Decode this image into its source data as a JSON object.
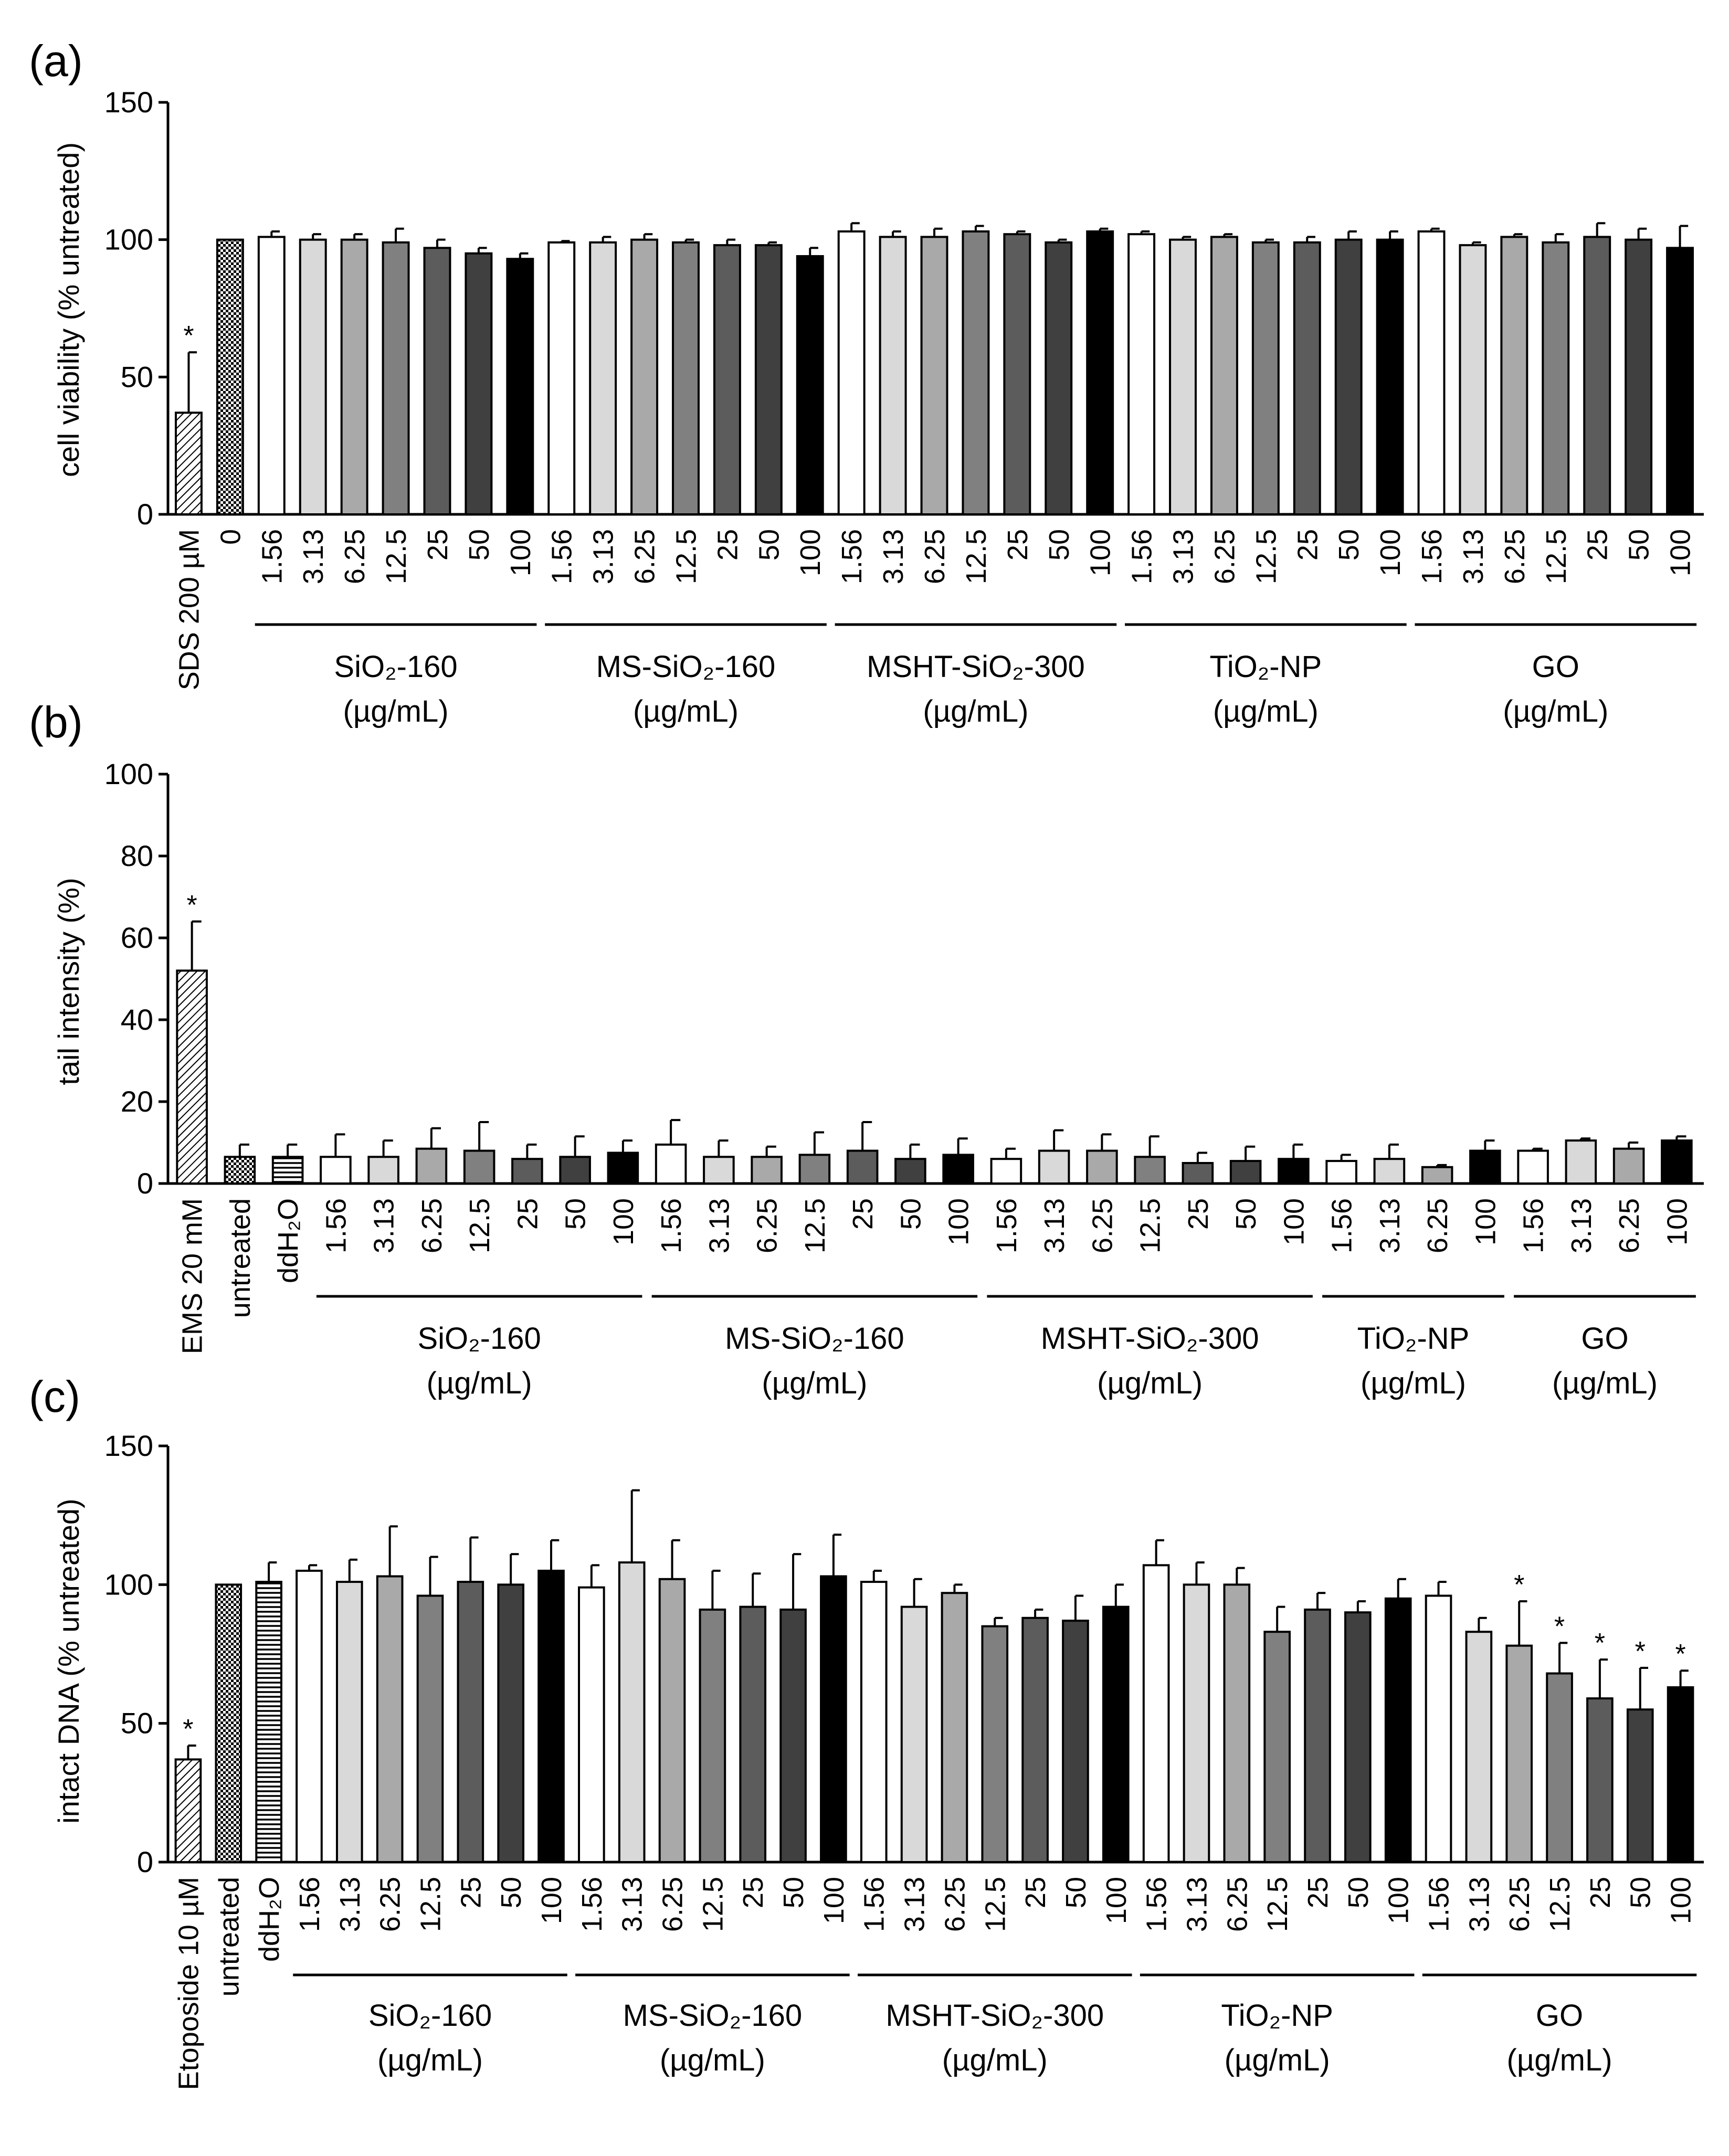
{
  "shade_colors": [
    "#ffffff",
    "#d9d9d9",
    "#a9a9a9",
    "#808080",
    "#5c5c5c",
    "#404040",
    "#000000"
  ],
  "chart_data": [
    {
      "type": "bar",
      "panel": "(a)",
      "ylabel": "cell viability (% untreated)",
      "ylim": [
        0,
        150
      ],
      "yticks": [
        0,
        50,
        100,
        150
      ],
      "controls": [
        {
          "label": "SDS 200 µM",
          "value": 37,
          "error": 22,
          "pattern": "diagonal",
          "star": "*"
        },
        {
          "label": "0",
          "value": 100,
          "error": 0,
          "pattern": "checker"
        }
      ],
      "groups": [
        {
          "name": "SiO₂-160",
          "unit": "(µg/mL)",
          "doses": [
            "1.56",
            "3.13",
            "6.25",
            "12.5",
            "25",
            "50",
            "100"
          ],
          "values": [
            101,
            100,
            100,
            99,
            97,
            95,
            93
          ],
          "errors": [
            2,
            2,
            2,
            5,
            3,
            2,
            2
          ]
        },
        {
          "name": "MS-SiO₂-160",
          "unit": "(µg/mL)",
          "doses": [
            "1.56",
            "3.13",
            "6.25",
            "12.5",
            "25",
            "50",
            "100"
          ],
          "values": [
            99,
            99,
            100,
            99,
            98,
            98,
            94
          ],
          "errors": [
            0.5,
            2,
            2,
            1,
            2,
            1,
            3
          ]
        },
        {
          "name": "MSHT-SiO₂-300",
          "unit": "(µg/mL)",
          "doses": [
            "1.56",
            "3.13",
            "6.25",
            "12.5",
            "25",
            "50",
            "100"
          ],
          "values": [
            103,
            101,
            101,
            103,
            102,
            99,
            103
          ],
          "errors": [
            3,
            2,
            3,
            2,
            1,
            1,
            1
          ]
        },
        {
          "name": "TiO₂-NP",
          "unit": "(µg/mL)",
          "doses": [
            "1.56",
            "3.13",
            "6.25",
            "12.5",
            "25",
            "50",
            "100"
          ],
          "values": [
            102,
            100,
            101,
            99,
            99,
            100,
            100
          ],
          "errors": [
            1,
            1,
            1,
            1,
            2,
            3,
            3
          ]
        },
        {
          "name": "GO",
          "unit": "(µg/mL)",
          "doses": [
            "1.56",
            "3.13",
            "6.25",
            "12.5",
            "25",
            "50",
            "100"
          ],
          "values": [
            103,
            98,
            101,
            99,
            101,
            100,
            97
          ],
          "errors": [
            1,
            1,
            1,
            3,
            5,
            4,
            8
          ]
        }
      ]
    },
    {
      "type": "bar",
      "panel": "(b)",
      "ylabel": "tail intensity (%)",
      "ylim": [
        0,
        100
      ],
      "yticks": [
        0,
        20,
        40,
        60,
        80,
        100
      ],
      "controls": [
        {
          "label": "EMS 20 mM",
          "value": 52,
          "error": 12,
          "pattern": "diagonal",
          "star": "*"
        },
        {
          "label": "untreated",
          "value": 6.5,
          "error": 3,
          "pattern": "checker"
        },
        {
          "label": "ddH₂O",
          "value": 6.5,
          "error": 3,
          "pattern": "hlines"
        }
      ],
      "groups": [
        {
          "name": "SiO₂-160",
          "unit": "(µg/mL)",
          "doses": [
            "1.56",
            "3.13",
            "6.25",
            "12.5",
            "25",
            "50",
            "100"
          ],
          "values": [
            6.5,
            6.5,
            8.5,
            8,
            6,
            6.5,
            7.5
          ],
          "errors": [
            5.5,
            4,
            5,
            7,
            3.5,
            5,
            3
          ]
        },
        {
          "name": "MS-SiO₂-160",
          "unit": "(µg/mL)",
          "doses": [
            "1.56",
            "3.13",
            "6.25",
            "12.5",
            "25",
            "50",
            "100"
          ],
          "values": [
            9.5,
            6.5,
            6.5,
            7,
            8,
            6,
            7
          ],
          "errors": [
            6,
            4,
            2.5,
            5.5,
            7,
            3.5,
            4
          ]
        },
        {
          "name": "MSHT-SiO₂-300",
          "unit": "(µg/mL)",
          "doses": [
            "1.56",
            "3.13",
            "6.25",
            "12.5",
            "25",
            "50",
            "100"
          ],
          "values": [
            6,
            8,
            8,
            6.5,
            5,
            5.5,
            6
          ],
          "errors": [
            2.5,
            5,
            4,
            5,
            2.5,
            3.5,
            3.5
          ]
        },
        {
          "name": "TiO₂-NP",
          "unit": "(µg/mL)",
          "doses": [
            "1.56",
            "3.13",
            "6.25",
            "100"
          ],
          "values": [
            5.5,
            6,
            4,
            8
          ],
          "errors": [
            1.5,
            3.5,
            0.5,
            2.5
          ]
        },
        {
          "name": "GO",
          "unit": "(µg/mL)",
          "doses": [
            "1.56",
            "3.13",
            "6.25",
            "100"
          ],
          "values": [
            8,
            10.5,
            8.5,
            10.5
          ],
          "errors": [
            0.5,
            0.5,
            1.5,
            1
          ]
        }
      ]
    },
    {
      "type": "bar",
      "panel": "(c)",
      "ylabel": "intact DNA (% untreated)",
      "ylim": [
        0,
        150
      ],
      "yticks": [
        0,
        50,
        100,
        150
      ],
      "controls": [
        {
          "label": "Etoposide 10 µM",
          "value": 37,
          "error": 5,
          "pattern": "diagonal",
          "star": "*"
        },
        {
          "label": "untreated",
          "value": 100,
          "error": 0,
          "pattern": "checker"
        },
        {
          "label": "ddH₂O",
          "value": 101,
          "error": 7,
          "pattern": "hlines"
        }
      ],
      "groups": [
        {
          "name": "SiO₂-160",
          "unit": "(µg/mL)",
          "doses": [
            "1.56",
            "3.13",
            "6.25",
            "12.5",
            "25",
            "50",
            "100"
          ],
          "values": [
            105,
            101,
            103,
            96,
            101,
            100,
            105
          ],
          "errors": [
            2,
            8,
            18,
            14,
            16,
            11,
            11
          ]
        },
        {
          "name": "MS-SiO₂-160",
          "unit": "(µg/mL)",
          "doses": [
            "1.56",
            "3.13",
            "6.25",
            "12.5",
            "25",
            "50",
            "100"
          ],
          "values": [
            99,
            108,
            102,
            91,
            92,
            91,
            103
          ],
          "errors": [
            8,
            26,
            14,
            14,
            12,
            20,
            15
          ]
        },
        {
          "name": "MSHT-SiO₂-300",
          "unit": "(µg/mL)",
          "doses": [
            "1.56",
            "3.13",
            "6.25",
            "12.5",
            "25",
            "50",
            "100"
          ],
          "values": [
            101,
            92,
            97,
            85,
            88,
            87,
            92
          ],
          "errors": [
            4,
            10,
            3,
            3,
            3,
            9,
            8
          ]
        },
        {
          "name": "TiO₂-NP",
          "unit": "(µg/mL)",
          "doses": [
            "1.56",
            "3.13",
            "6.25",
            "12.5",
            "25",
            "50",
            "100"
          ],
          "values": [
            107,
            100,
            100,
            83,
            91,
            90,
            95
          ],
          "errors": [
            9,
            8,
            6,
            9,
            6,
            4,
            7
          ]
        },
        {
          "name": "GO",
          "unit": "(µg/mL)",
          "doses": [
            "1.56",
            "3.13",
            "6.25",
            "12.5",
            "25",
            "50",
            "100"
          ],
          "values": [
            96,
            83,
            78,
            68,
            59,
            55,
            63
          ],
          "errors": [
            5,
            5,
            16,
            11,
            14,
            15,
            6
          ],
          "stars": [
            "",
            "",
            "*",
            "*",
            "*",
            "*",
            "*"
          ]
        }
      ]
    }
  ]
}
